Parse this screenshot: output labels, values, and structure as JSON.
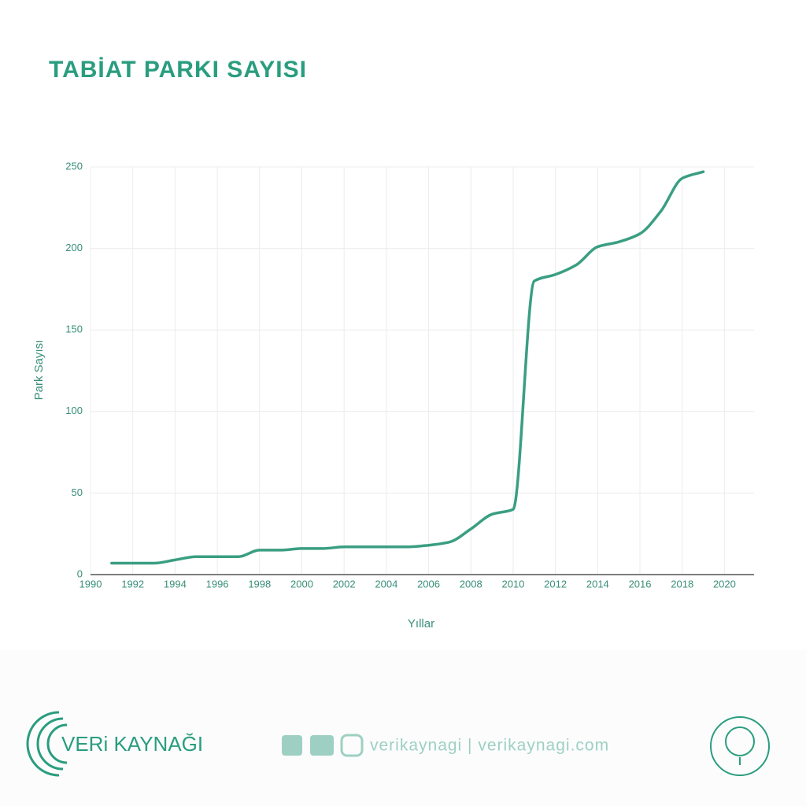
{
  "chart_data": {
    "type": "line",
    "title": "TABİAT PARKI SAYISI",
    "x_label": "Yıllar",
    "y_label": "Park Sayısı",
    "x": [
      1991,
      1992,
      1993,
      1994,
      1995,
      1996,
      1997,
      1998,
      1999,
      2000,
      2001,
      2002,
      2003,
      2004,
      2005,
      2006,
      2007,
      2008,
      2009,
      2010,
      2011,
      2012,
      2013,
      2014,
      2015,
      2016,
      2017,
      2018,
      2019
    ],
    "series": [
      {
        "name": "Park Sayısı",
        "color": "#3a9e82",
        "values": [
          7,
          7,
          7,
          9,
          11,
          11,
          11,
          15,
          15,
          16,
          16,
          17,
          17,
          17,
          17,
          18,
          20,
          28,
          37,
          40,
          180,
          184,
          190,
          201,
          204,
          209,
          223,
          243,
          247
        ]
      }
    ],
    "xlim": [
      1990,
      2021.4
    ],
    "xticks": [
      1990,
      1992,
      1994,
      1996,
      1998,
      2000,
      2002,
      2004,
      2006,
      2008,
      2010,
      2012,
      2014,
      2016,
      2018,
      2020
    ],
    "ylim": [
      0,
      250
    ],
    "yticks": [
      0,
      50,
      100,
      150,
      200,
      250
    ],
    "grid": true
  },
  "footer": {
    "brand": "VERi KAYNAĞI",
    "links": "verikaynagi | verikaynagi.com"
  }
}
